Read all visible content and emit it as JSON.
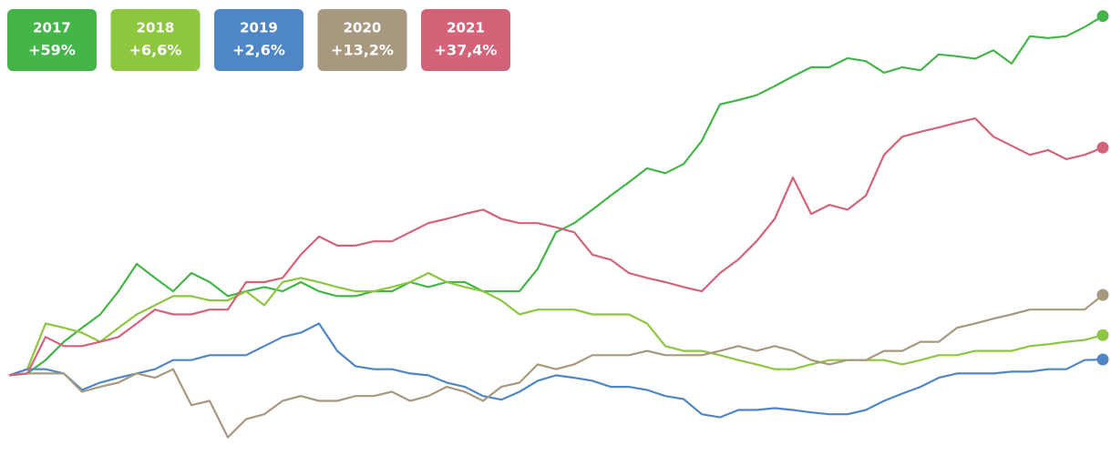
{
  "chart_data": {
    "type": "line",
    "ylim": [
      -11,
      60
    ],
    "series": [
      {
        "name": "2017",
        "color": "#44b549",
        "end_label": "+59%",
        "values": [
          0,
          0.3,
          2.5,
          5.5,
          7.8,
          10.0,
          13.8,
          18.3,
          16.0,
          13.8,
          16.8,
          15.3,
          13.0,
          13.8,
          14.5,
          13.8,
          15.3,
          13.8,
          13.0,
          13.0,
          13.8,
          13.8,
          15.3,
          14.5,
          15.3,
          15.3,
          13.8,
          13.8,
          13.8,
          17.5,
          23.5,
          25.0,
          27.2,
          29.5,
          31.7,
          34.0,
          33.2,
          34.7,
          38.5,
          44.5,
          45.2,
          46.0,
          47.5,
          49.1,
          50.6,
          50.6,
          52.1,
          51.6,
          49.7,
          50.6,
          50.1,
          52.7,
          52.4,
          52.0,
          53.4,
          51.2,
          55.7,
          55.4,
          55.7,
          57.2,
          59
        ]
      },
      {
        "name": "2018",
        "color": "#8dc63f",
        "end_label": "+6,6%",
        "values": [
          0,
          1.0,
          8.5,
          7.8,
          7.0,
          5.5,
          7.8,
          10.0,
          11.5,
          13.0,
          13.0,
          12.3,
          12.3,
          13.8,
          11.5,
          15.3,
          16.0,
          15.3,
          14.5,
          13.8,
          13.8,
          14.5,
          15.3,
          16.8,
          15.3,
          14.5,
          13.8,
          12.3,
          10.0,
          10.8,
          10.8,
          10.8,
          10.0,
          10.0,
          10.0,
          8.5,
          4.8,
          4.0,
          4.0,
          3.3,
          2.5,
          1.8,
          1.0,
          1.0,
          1.8,
          2.5,
          2.5,
          2.5,
          2.5,
          1.8,
          2.5,
          3.3,
          3.3,
          4.0,
          4.0,
          4.0,
          4.8,
          5.1,
          5.5,
          5.8,
          6.6
        ]
      },
      {
        "name": "2019",
        "color": "#4f86c6",
        "end_label": "+2,6%",
        "values": [
          0,
          1.0,
          1.0,
          0.3,
          -2.4,
          -1.2,
          -0.4,
          0.3,
          1.0,
          2.5,
          2.5,
          3.3,
          3.3,
          3.3,
          4.8,
          6.3,
          7.0,
          8.5,
          4.0,
          1.5,
          1.0,
          1.0,
          0.3,
          0,
          -1.2,
          -1.9,
          -3.4,
          -4.0,
          -2.7,
          -0.9,
          0,
          -0.4,
          -0.9,
          -1.9,
          -1.9,
          -2.4,
          -3.4,
          -3.9,
          -6.4,
          -6.9,
          -5.7,
          -5.7,
          -5.4,
          -5.7,
          -6.1,
          -6.4,
          -6.4,
          -5.7,
          -4.2,
          -3.0,
          -1.9,
          -0.4,
          0.3,
          0.3,
          0.3,
          0.6,
          0.6,
          1.0,
          1.0,
          2.5,
          2.6
        ]
      },
      {
        "name": "2020",
        "color": "#a89880",
        "end_label": "+13,2%",
        "values": [
          0,
          0.3,
          0.3,
          0.3,
          -2.7,
          -1.9,
          -1.2,
          0.3,
          -0.4,
          1.0,
          -4.9,
          -4.2,
          -10.2,
          -7.2,
          -6.4,
          -4.2,
          -3.4,
          -4.2,
          -4.2,
          -3.4,
          -3.4,
          -2.7,
          -4.2,
          -3.4,
          -1.9,
          -2.7,
          -4.2,
          -1.9,
          -1.2,
          1.8,
          1.0,
          1.8,
          3.3,
          3.3,
          3.3,
          4.0,
          3.3,
          3.3,
          3.3,
          4.0,
          4.8,
          4.0,
          4.8,
          4.0,
          2.5,
          1.8,
          2.5,
          2.5,
          4.0,
          4.0,
          5.5,
          5.5,
          7.8,
          8.5,
          9.3,
          10.0,
          10.8,
          10.8,
          10.8,
          10.8,
          13.2
        ]
      },
      {
        "name": "2021",
        "color": "#d4637a",
        "end_label": "+37,4%",
        "values": [
          0,
          0.3,
          6.3,
          4.8,
          4.8,
          5.5,
          6.3,
          8.5,
          10.8,
          10.0,
          10.0,
          10.8,
          10.8,
          15.3,
          15.3,
          16.0,
          19.8,
          22.8,
          21.3,
          21.3,
          22.0,
          22.0,
          23.5,
          25.0,
          25.7,
          26.5,
          27.2,
          25.7,
          25.0,
          25.0,
          24.3,
          23.5,
          19.8,
          19.0,
          16.8,
          16.0,
          15.3,
          14.5,
          13.8,
          16.8,
          19.0,
          22.0,
          25.7,
          32.5,
          26.5,
          28.0,
          27.2,
          29.5,
          36.2,
          39.2,
          40.0,
          40.7,
          41.5,
          42.2,
          39.2,
          37.7,
          36.2,
          37.0,
          35.5,
          36.2,
          37.4
        ]
      }
    ]
  }
}
